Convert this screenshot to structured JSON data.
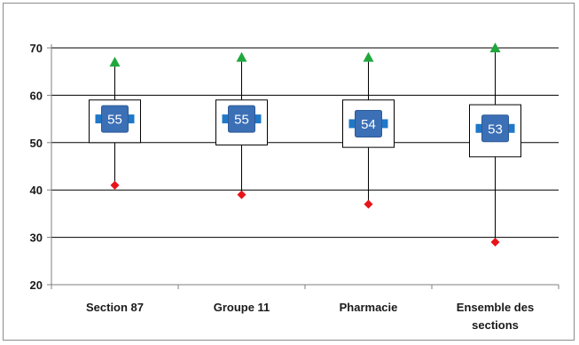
{
  "chart_data": {
    "type": "box",
    "categories": [
      "Section 87",
      "Groupe 11",
      "Pharmacie",
      "Ensemble des sections"
    ],
    "category_lines": [
      [
        "Section 87"
      ],
      [
        "Groupe 11"
      ],
      [
        "Pharmacie"
      ],
      [
        "Ensemble des",
        "sections"
      ]
    ],
    "series": [
      {
        "name": "max",
        "values": [
          67,
          68,
          68,
          70
        ]
      },
      {
        "name": "q3",
        "values": [
          59,
          59,
          59,
          58
        ]
      },
      {
        "name": "mean",
        "values": [
          55,
          55,
          54,
          53
        ]
      },
      {
        "name": "q1",
        "values": [
          50,
          49.5,
          49,
          47
        ]
      },
      {
        "name": "min",
        "values": [
          41,
          39,
          37,
          29
        ]
      }
    ],
    "mean_labels": [
      "55",
      "55",
      "54",
      "53"
    ],
    "ylim": [
      20,
      70
    ],
    "yticks": [
      20,
      30,
      40,
      50,
      60,
      70
    ],
    "ytick_labels": [
      "20",
      "30",
      "40",
      "50",
      "60",
      "70"
    ],
    "grid": true,
    "legend": "none",
    "colors": {
      "max_marker": "#1fa83c",
      "min_marker": "#e8141a",
      "mean_marker": "#3b6fb6",
      "mean_bar": "#1f78c8",
      "box_fill": "#ffffff",
      "box_stroke": "#000000",
      "grid": "#000000"
    }
  }
}
